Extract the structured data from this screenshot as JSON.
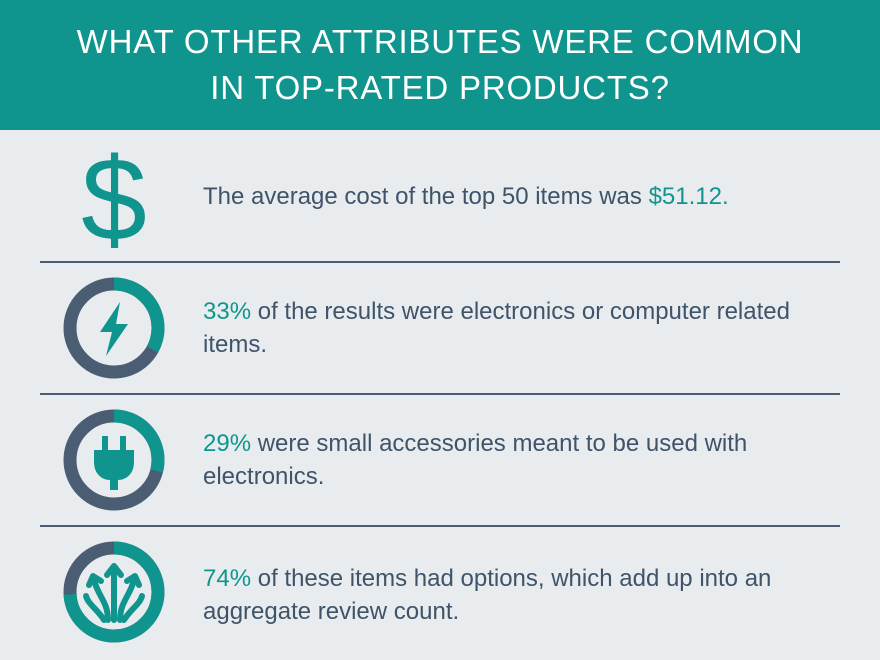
{
  "header": {
    "line1": "WHAT OTHER ATTRIBUTES WERE COMMON",
    "line2": "IN TOP-RATED PRODUCTS?"
  },
  "colors": {
    "teal": "#0f958d",
    "slate": "#4a5d72",
    "text": "#3f5369",
    "background": "#e8ecef"
  },
  "items": [
    {
      "icon": "dollar-sign-icon",
      "text_before": "The average cost of the top 50 items was ",
      "highlight": "$51.12.",
      "text_after": ""
    },
    {
      "icon": "lightning-bolt-icon",
      "percent": 33,
      "highlight": "33%",
      "text_after": " of the results were electronics or computer related items."
    },
    {
      "icon": "power-plug-icon",
      "percent": 29,
      "highlight": "29%",
      "text_after": " were small accessories meant to be used with electronics."
    },
    {
      "icon": "branching-arrows-icon",
      "percent": 74,
      "highlight": "74%",
      "text_after": " of these items had options, which add up into an aggregate review count."
    }
  ]
}
